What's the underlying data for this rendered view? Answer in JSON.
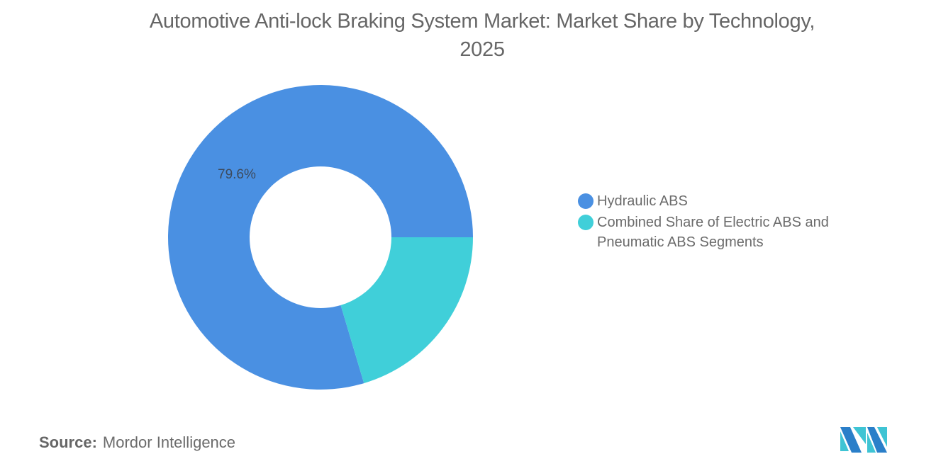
{
  "title": "Automotive Anti-lock Braking System Market: Market Share by Technology, 2025",
  "title_line1": "Automotive Anti-lock Braking System Market: Market Share by Technology,",
  "title_line2": "2025",
  "chart_data": {
    "type": "pie",
    "variant": "donut",
    "title": "Automotive Anti-lock Braking System Market: Market Share by Technology, 2025",
    "categories": [
      "Hydraulic ABS",
      "Combined Share of Electric ABS and Pneumatic ABS Segments"
    ],
    "values": [
      79.6,
      20.4
    ],
    "colors": [
      "#4a90e2",
      "#40cfd9"
    ],
    "data_labels": [
      "79.6%",
      ""
    ],
    "legend_position": "right"
  },
  "labels": {
    "hydraulic_pct": "79.6%"
  },
  "legend": [
    {
      "label": "Hydraulic ABS",
      "color": "#4a90e2"
    },
    {
      "label": "Combined Share of Electric ABS and Pneumatic ABS Segments",
      "color": "#40cfd9"
    }
  ],
  "source": {
    "label": "Source:",
    "value": "Mordor Intelligence"
  },
  "logo": {
    "name": "Mordor Intelligence logo",
    "colors": [
      "#2a7fc9",
      "#3fc4d4"
    ]
  }
}
